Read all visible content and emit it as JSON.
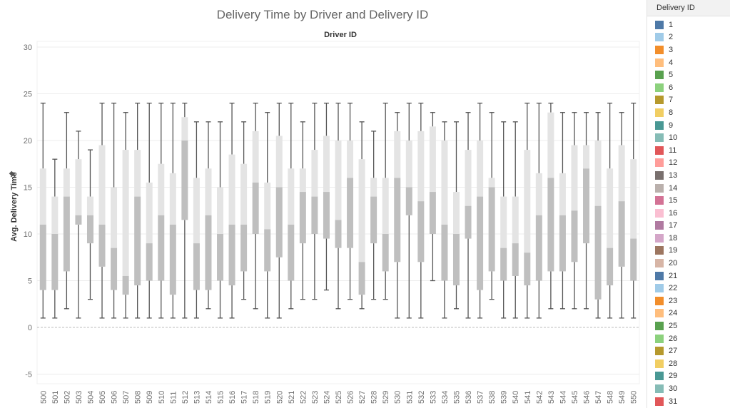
{
  "chart_data": {
    "type": "box",
    "title": "Delivery Time by Driver and Delivery ID",
    "column_header": "Driver ID",
    "ylabel": "Avg. Delivery Time",
    "ylim": [
      -7,
      30
    ],
    "yticks": [
      -5,
      0,
      5,
      10,
      15,
      20,
      25,
      30
    ],
    "grid": true,
    "legend_position": "right",
    "legend_title": "Delivery ID",
    "legend_items": [
      "1",
      "2",
      "3",
      "4",
      "5",
      "6",
      "7",
      "8",
      "9",
      "10",
      "11",
      "12",
      "13",
      "14",
      "15",
      "16",
      "17",
      "18",
      "19",
      "20",
      "21",
      "22",
      "23",
      "24",
      "25",
      "26",
      "27",
      "28",
      "29",
      "30",
      "31"
    ],
    "legend_colors": [
      "#4e79a7",
      "#a0cbe8",
      "#f28e2b",
      "#ffbe7d",
      "#59a14f",
      "#8cd17d",
      "#b6992d",
      "#f1ce63",
      "#499894",
      "#86bcb6",
      "#e15759",
      "#ff9d9a",
      "#79706e",
      "#bab0ac",
      "#d37295",
      "#fabfd2",
      "#b07aa1",
      "#d4a6c8",
      "#9d7660",
      "#d7b5a6",
      "#4e79a7",
      "#a0cbe8",
      "#f28e2b",
      "#ffbe7d",
      "#59a14f",
      "#8cd17d",
      "#b6992d",
      "#f1ce63",
      "#499894",
      "#86bcb6",
      "#e15759"
    ],
    "drivers": [
      {
        "id": "500",
        "min": 1,
        "q1": 4,
        "median": 11,
        "q3": 17,
        "max": 24
      },
      {
        "id": "501",
        "min": 1,
        "q1": 4,
        "median": 10,
        "q3": 14,
        "max": 18
      },
      {
        "id": "502",
        "min": 2,
        "q1": 6,
        "median": 14,
        "q3": 17,
        "max": 23
      },
      {
        "id": "503",
        "min": 1,
        "q1": 11,
        "median": 12,
        "q3": 18,
        "max": 21
      },
      {
        "id": "504",
        "min": 3,
        "q1": 9,
        "median": 12,
        "q3": 14,
        "max": 19
      },
      {
        "id": "505",
        "min": 1,
        "q1": 6.5,
        "median": 11,
        "q3": 19.5,
        "max": 24
      },
      {
        "id": "506",
        "min": 1,
        "q1": 4,
        "median": 8.5,
        "q3": 15,
        "max": 24
      },
      {
        "id": "507",
        "min": 1,
        "q1": 3.5,
        "median": 5.5,
        "q3": 19,
        "max": 23
      },
      {
        "id": "508",
        "min": 1,
        "q1": 4.5,
        "median": 14,
        "q3": 19,
        "max": 24
      },
      {
        "id": "509",
        "min": 1,
        "q1": 5,
        "median": 9,
        "q3": 15.5,
        "max": 24
      },
      {
        "id": "510",
        "min": 1,
        "q1": 5,
        "median": 12,
        "q3": 17.5,
        "max": 24
      },
      {
        "id": "511",
        "min": 1,
        "q1": 3.5,
        "median": 11,
        "q3": 16.5,
        "max": 24
      },
      {
        "id": "512",
        "min": 1,
        "q1": 11.5,
        "median": 20,
        "q3": 22.5,
        "max": 24
      },
      {
        "id": "513",
        "min": 1,
        "q1": 4,
        "median": 9,
        "q3": 16,
        "max": 22
      },
      {
        "id": "514",
        "min": 2,
        "q1": 4,
        "median": 12,
        "q3": 17,
        "max": 22
      },
      {
        "id": "515",
        "min": 1,
        "q1": 5,
        "median": 10,
        "q3": 15,
        "max": 22
      },
      {
        "id": "516",
        "min": 1,
        "q1": 4.5,
        "median": 11,
        "q3": 18.5,
        "max": 24
      },
      {
        "id": "517",
        "min": 3,
        "q1": 6,
        "median": 11,
        "q3": 17.5,
        "max": 22
      },
      {
        "id": "518",
        "min": 2,
        "q1": 10,
        "median": 15.5,
        "q3": 21,
        "max": 24
      },
      {
        "id": "519",
        "min": 1,
        "q1": 6,
        "median": 10.5,
        "q3": 15.5,
        "max": 23
      },
      {
        "id": "520",
        "min": 1,
        "q1": 7.5,
        "median": 15,
        "q3": 20.5,
        "max": 24
      },
      {
        "id": "521",
        "min": 2,
        "q1": 5,
        "median": 11,
        "q3": 17,
        "max": 24
      },
      {
        "id": "522",
        "min": 3,
        "q1": 9,
        "median": 14.5,
        "q3": 17,
        "max": 22
      },
      {
        "id": "523",
        "min": 3,
        "q1": 10,
        "median": 14,
        "q3": 19,
        "max": 24
      },
      {
        "id": "524",
        "min": 4,
        "q1": 9.5,
        "median": 14.5,
        "q3": 20.5,
        "max": 24
      },
      {
        "id": "525",
        "min": 2,
        "q1": 8.5,
        "median": 11.5,
        "q3": 20,
        "max": 24
      },
      {
        "id": "526",
        "min": 3,
        "q1": 8.5,
        "median": 16,
        "q3": 20,
        "max": 24
      },
      {
        "id": "527",
        "min": 2,
        "q1": 3.5,
        "median": 7,
        "q3": 18,
        "max": 22
      },
      {
        "id": "528",
        "min": 3,
        "q1": 9,
        "median": 14,
        "q3": 16,
        "max": 21
      },
      {
        "id": "529",
        "min": 3,
        "q1": 6,
        "median": 10,
        "q3": 16,
        "max": 24
      },
      {
        "id": "530",
        "min": 1,
        "q1": 7,
        "median": 16,
        "q3": 21,
        "max": 23
      },
      {
        "id": "531",
        "min": 1,
        "q1": 12,
        "median": 15,
        "q3": 20,
        "max": 24
      },
      {
        "id": "532",
        "min": 1,
        "q1": 7,
        "median": 13.5,
        "q3": 21,
        "max": 24
      },
      {
        "id": "533",
        "min": 5,
        "q1": 10,
        "median": 14.5,
        "q3": 21.5,
        "max": 23
      },
      {
        "id": "534",
        "min": 1,
        "q1": 5,
        "median": 11,
        "q3": 20,
        "max": 22
      },
      {
        "id": "535",
        "min": 2,
        "q1": 4.5,
        "median": 10,
        "q3": 14.5,
        "max": 22
      },
      {
        "id": "536",
        "min": 1,
        "q1": 9.5,
        "median": 13,
        "q3": 19,
        "max": 23
      },
      {
        "id": "537",
        "min": 1,
        "q1": 4,
        "median": 14,
        "q3": 20,
        "max": 24
      },
      {
        "id": "538",
        "min": 3,
        "q1": 6,
        "median": 15,
        "q3": 16,
        "max": 23
      },
      {
        "id": "539",
        "min": 1,
        "q1": 5,
        "median": 8.5,
        "q3": 14,
        "max": 22
      },
      {
        "id": "540",
        "min": 1,
        "q1": 5.5,
        "median": 9,
        "q3": 14,
        "max": 22
      },
      {
        "id": "541",
        "min": 1,
        "q1": 4.5,
        "median": 8,
        "q3": 19,
        "max": 24
      },
      {
        "id": "542",
        "min": 1,
        "q1": 5,
        "median": 12,
        "q3": 16.5,
        "max": 24
      },
      {
        "id": "543",
        "min": 2,
        "q1": 6,
        "median": 16,
        "q3": 23,
        "max": 24
      },
      {
        "id": "544",
        "min": 2,
        "q1": 6,
        "median": 12,
        "q3": 16.5,
        "max": 23
      },
      {
        "id": "545",
        "min": 2,
        "q1": 7,
        "median": 12.5,
        "q3": 19.5,
        "max": 23
      },
      {
        "id": "546",
        "min": 2,
        "q1": 9,
        "median": 17,
        "q3": 19.5,
        "max": 23
      },
      {
        "id": "547",
        "min": 1,
        "q1": 3,
        "median": 13,
        "q3": 20,
        "max": 23
      },
      {
        "id": "548",
        "min": 1,
        "q1": 4.5,
        "median": 8.5,
        "q3": 17,
        "max": 24
      },
      {
        "id": "549",
        "min": 1,
        "q1": 6.5,
        "median": 13.5,
        "q3": 19.5,
        "max": 23
      },
      {
        "id": "550",
        "min": 1,
        "q1": 5,
        "median": 9.5,
        "q3": 18,
        "max": 24
      }
    ]
  }
}
